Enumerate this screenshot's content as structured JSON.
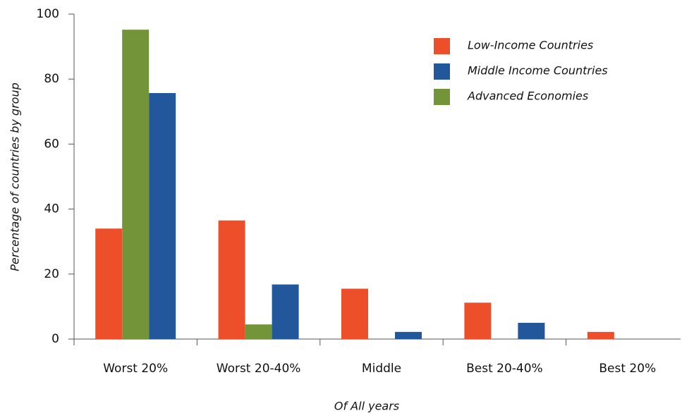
{
  "chart_data": {
    "type": "bar",
    "x_label": "Of All years",
    "y_label": "Percentage of countries by group",
    "categories": [
      "Worst 20%",
      "Worst 20-40%",
      "Middle",
      "Best 20-40%",
      "Best 20%"
    ],
    "series": [
      {
        "name": "Low-Income Countries",
        "color": "#ee4f2b",
        "values": [
          34,
          36.5,
          15.5,
          11.2,
          2.2
        ]
      },
      {
        "name": "Advanced Economies",
        "color": "#74943a",
        "values": [
          95.2,
          4.5,
          0,
          0,
          0
        ]
      },
      {
        "name": "Middle Income Countries",
        "color": "#22579b",
        "values": [
          75.7,
          16.8,
          2.2,
          5,
          0
        ]
      }
    ],
    "legend_order": [
      0,
      2,
      1
    ],
    "ylim": [
      0,
      100
    ],
    "yticks": [
      0,
      20,
      40,
      60,
      80,
      100
    ]
  }
}
